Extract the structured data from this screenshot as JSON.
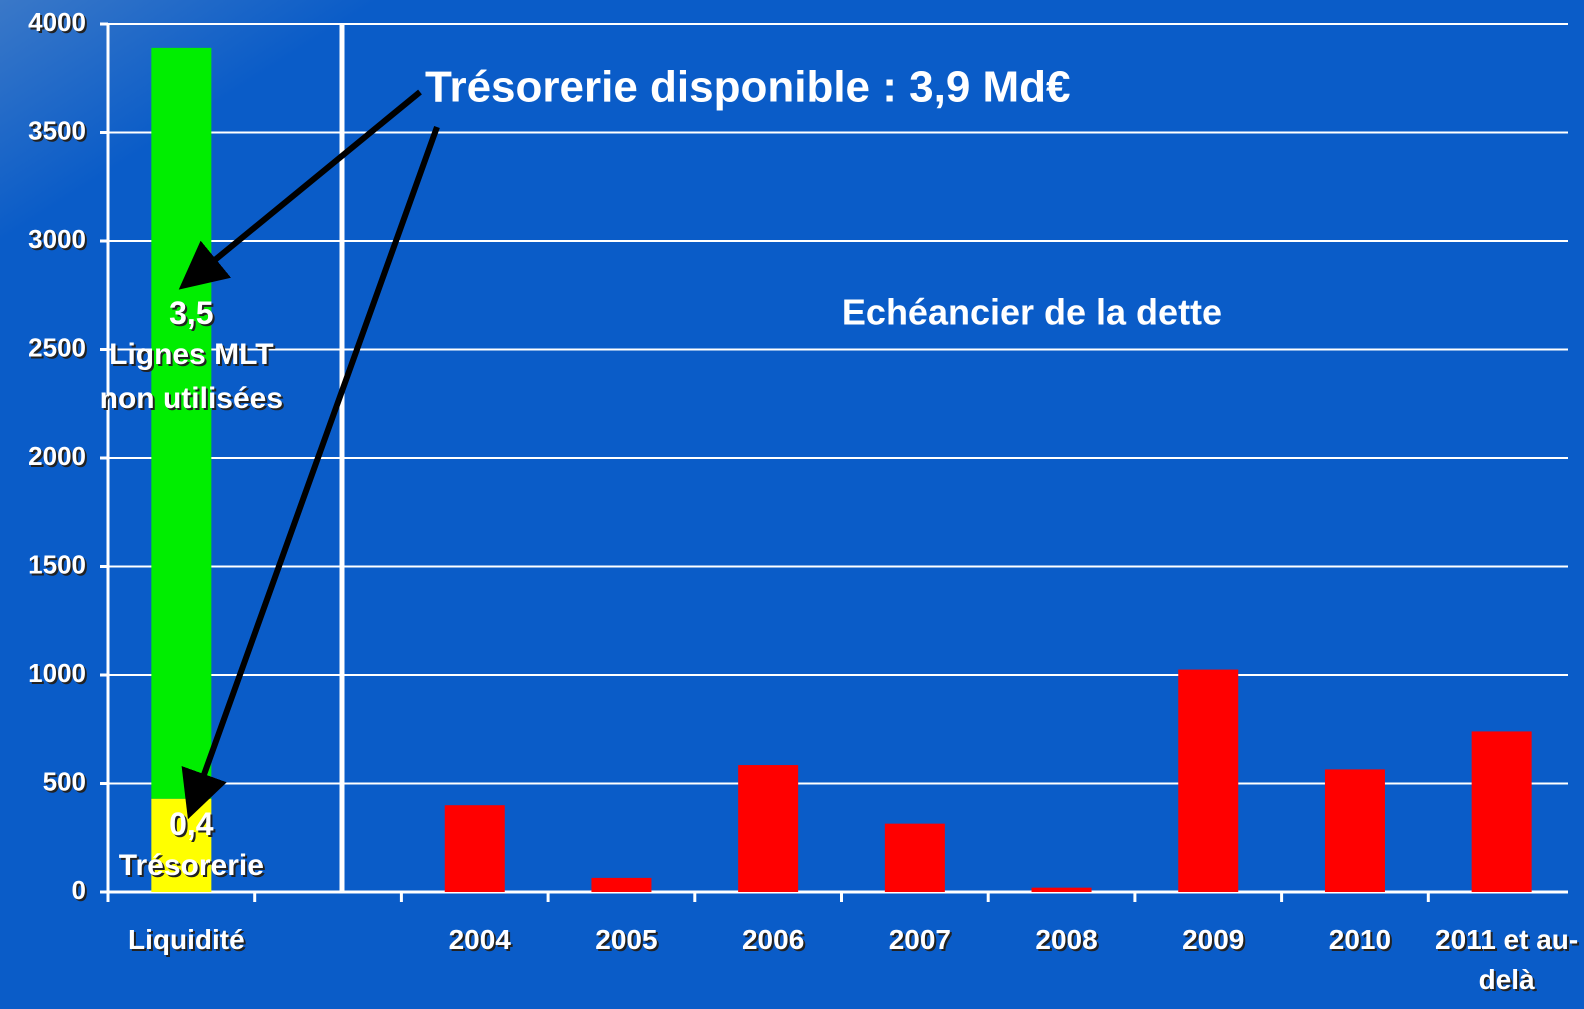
{
  "chart_data": {
    "type": "bar",
    "annotations": [
      "Trésorerie disponible : 3,9 Md€",
      "Echéancier de la dette"
    ],
    "categories": [
      "Liquidité",
      null,
      "2004",
      "2005",
      "2006",
      "2007",
      "2008",
      "2009",
      "2010",
      "2011 et au-delà"
    ],
    "stacked": true,
    "series": [
      {
        "name": "Trésorerie",
        "color": "#ffff00",
        "values": [
          430,
          null,
          null,
          null,
          null,
          null,
          null,
          null,
          null,
          null
        ],
        "value_labels": [
          "0,4",
          null,
          null,
          null,
          null,
          null,
          null,
          null,
          null,
          null
        ]
      },
      {
        "name": "Lignes MLT non utilisées",
        "color": "#00ee00",
        "values": [
          3460,
          null,
          null,
          null,
          null,
          null,
          null,
          null,
          null,
          null
        ],
        "value_labels": [
          "3,5",
          null,
          null,
          null,
          null,
          null,
          null,
          null,
          null,
          null
        ]
      },
      {
        "name": "Echéancier de la dette",
        "color": "#ff0000",
        "values": [
          null,
          null,
          400,
          65,
          585,
          315,
          20,
          1025,
          565,
          740
        ]
      }
    ],
    "ylim": [
      0,
      4000
    ],
    "yticks": [
      0,
      500,
      1000,
      1500,
      2000,
      2500,
      3000,
      3500,
      4000
    ],
    "grid": true
  }
}
